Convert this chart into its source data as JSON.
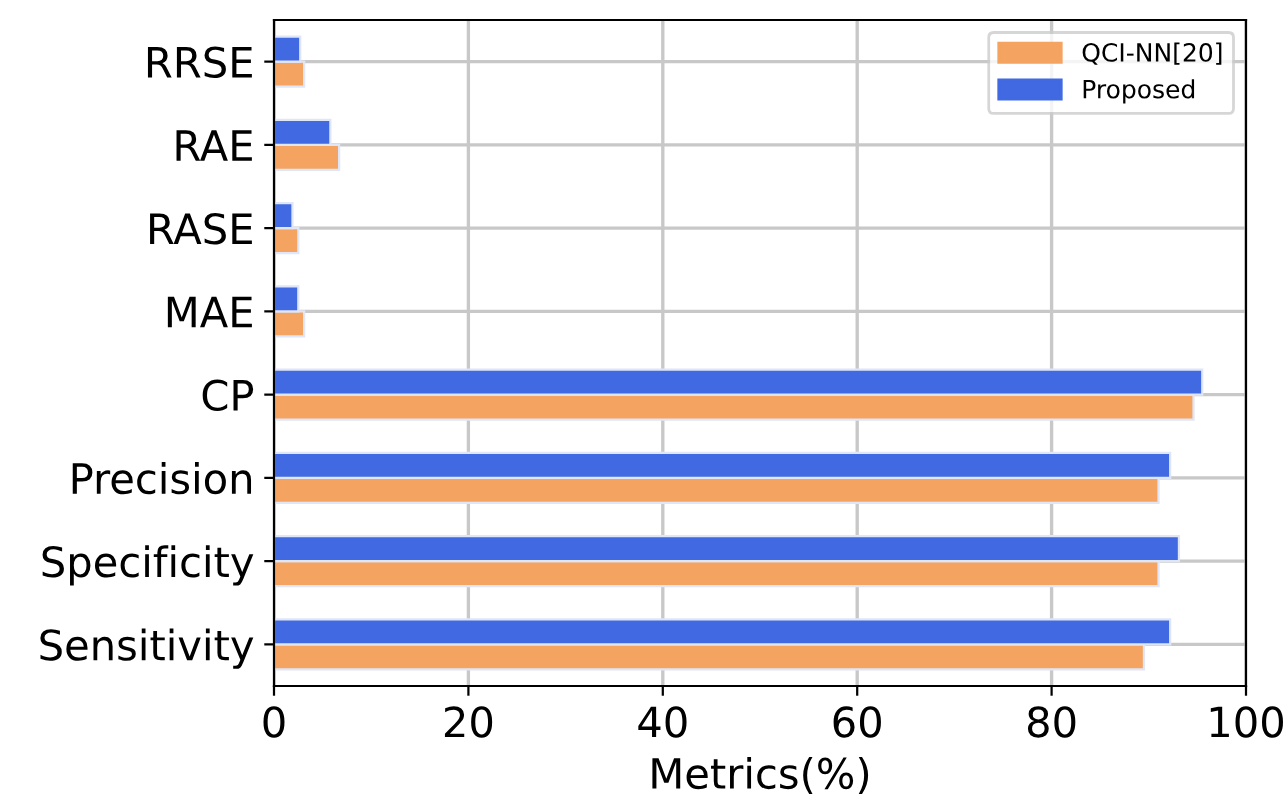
{
  "chart_data": {
    "type": "bar",
    "orientation": "horizontal",
    "xlabel": "Metrics(%)",
    "categories": [
      "RRSE",
      "RAE",
      "RASE",
      "MAE",
      "CP",
      "Precision",
      "Specificity",
      "Sensitivity"
    ],
    "series": [
      {
        "name": "QCI-NN[20]",
        "color": "#f4a460",
        "values": [
          3.1,
          6.7,
          2.5,
          3.1,
          94.6,
          91.0,
          91.0,
          89.5
        ]
      },
      {
        "name": "Proposed",
        "color": "#4169e1",
        "values": [
          2.7,
          5.8,
          1.9,
          2.5,
          95.5,
          92.2,
          93.1,
          92.2
        ]
      }
    ],
    "xlim": [
      0,
      100
    ],
    "xticks": [
      0,
      20,
      40,
      60,
      80,
      100
    ],
    "grid": true,
    "legend": "top right"
  }
}
